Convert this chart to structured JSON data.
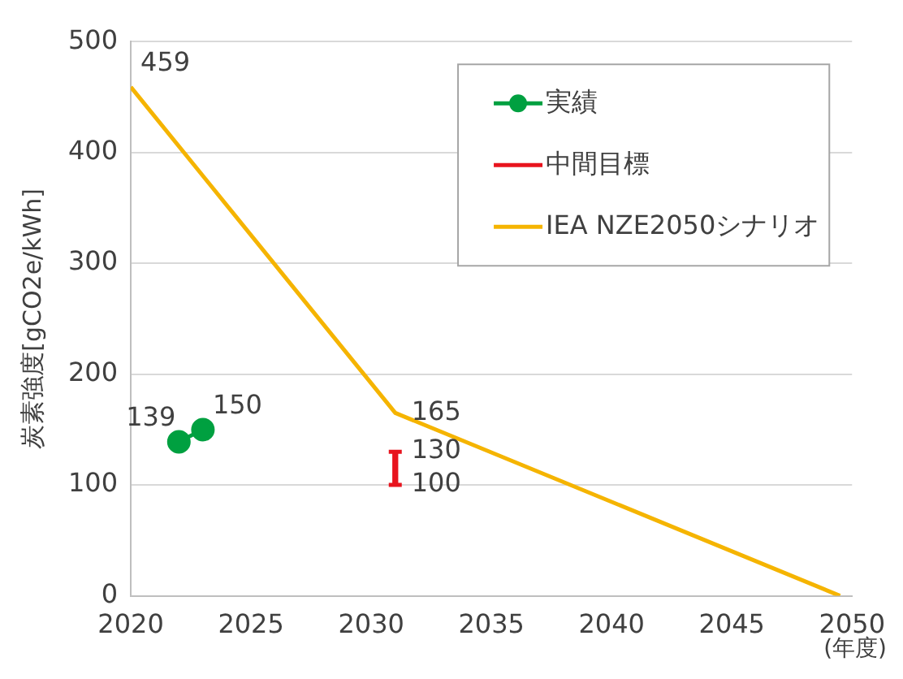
{
  "chart_data": {
    "type": "line",
    "ylabel": "炭素強度[gCO2e/kWh]",
    "xlabel": "(年度)",
    "xlim": [
      2020,
      2050
    ],
    "xticks": [
      2020,
      2025,
      2030,
      2035,
      2040,
      2045,
      2050
    ],
    "ylim": [
      0,
      500
    ],
    "yticks": [
      0,
      100,
      200,
      300,
      400,
      500
    ],
    "grid": "y",
    "legend": "top right",
    "series": [
      {
        "name": "実績",
        "type": "line",
        "marker": "circle",
        "color": "#00a040",
        "x": [
          2022,
          2023
        ],
        "values": [
          139,
          150
        ]
      },
      {
        "name": "中間目標",
        "type": "bar",
        "color": "#e8141e",
        "x": [
          2031
        ],
        "base": [
          100
        ],
        "values": [
          30
        ]
      },
      {
        "name": "IEA NZE2050シナリオ",
        "type": "line",
        "marker": "none",
        "color": "#f5b400",
        "x": [
          2020,
          2031,
          2049.5
        ],
        "values": [
          459,
          165,
          0
        ]
      }
    ],
    "annotations": [
      {
        "text": "459",
        "x": 2020,
        "y": 459
      },
      {
        "text": "165",
        "x": 2031,
        "y": 165
      },
      {
        "text": "139",
        "x": 2022,
        "y": 139
      },
      {
        "text": "150",
        "x": 2023,
        "y": 150
      },
      {
        "text": "130",
        "x": 2031,
        "y": 130
      },
      {
        "text": "100",
        "x": 2031,
        "y": 100
      }
    ]
  }
}
